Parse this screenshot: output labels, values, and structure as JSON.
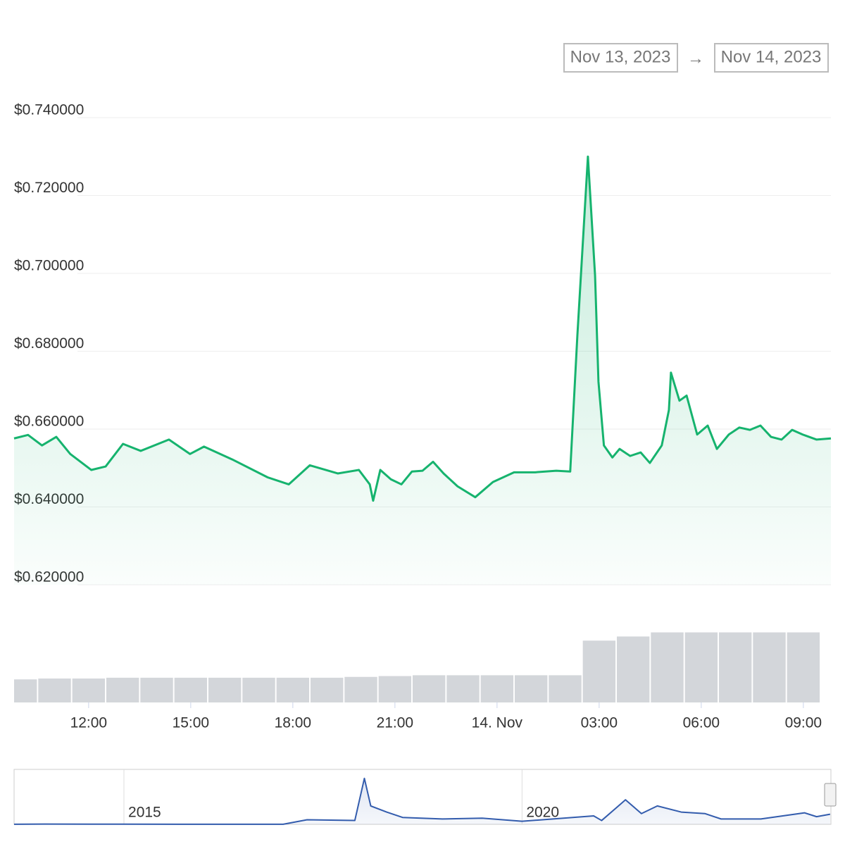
{
  "date_range": {
    "from": "Nov 13, 2023",
    "arrow": "→",
    "to": "Nov 14, 2023"
  },
  "chart_data": [
    {
      "type": "line",
      "area": true,
      "color": "#16b36e",
      "grid": true,
      "x": [
        9.81,
        10.22,
        10.63,
        11.05,
        11.46,
        12.08,
        12.5,
        13.01,
        13.53,
        14.36,
        14.98,
        15.39,
        16.22,
        17.26,
        17.88,
        18.5,
        19.32,
        19.94,
        20.26,
        20.36,
        20.57,
        20.88,
        21.19,
        21.5,
        21.81,
        22.12,
        22.43,
        22.84,
        23.36,
        23.88,
        24.5,
        25.12,
        25.74,
        26.15,
        26.36,
        26.67,
        26.88,
        26.98,
        27.14,
        27.39,
        27.6,
        27.91,
        28.22,
        28.49,
        28.84,
        29.05,
        29.11,
        29.36,
        29.57,
        29.88,
        30.19,
        30.46,
        30.81,
        31.12,
        31.43,
        31.74,
        32.05,
        32.36,
        32.67,
        32.98,
        33.39,
        33.81
      ],
      "values": [
        0.6576,
        0.6585,
        0.6558,
        0.658,
        0.6536,
        0.6495,
        0.6504,
        0.6562,
        0.6544,
        0.6573,
        0.6536,
        0.6555,
        0.6522,
        0.6476,
        0.6458,
        0.6507,
        0.6486,
        0.6495,
        0.6458,
        0.6416,
        0.6495,
        0.6471,
        0.6458,
        0.6491,
        0.6493,
        0.6516,
        0.6486,
        0.6453,
        0.6425,
        0.6464,
        0.6489,
        0.6489,
        0.6493,
        0.6491,
        0.684,
        0.73,
        0.6995,
        0.6722,
        0.6558,
        0.6527,
        0.6549,
        0.6531,
        0.654,
        0.6513,
        0.6558,
        0.6649,
        0.6745,
        0.6673,
        0.6686,
        0.6586,
        0.6609,
        0.6549,
        0.6586,
        0.6604,
        0.6598,
        0.6609,
        0.658,
        0.6573,
        0.6598,
        0.6586,
        0.6573,
        0.6576
      ],
      "xlim": [
        9.81,
        33.81
      ],
      "ylim": [
        0.62,
        0.74
      ],
      "yticks": [
        {
          "value": 0.62,
          "label": "$0.620000"
        },
        {
          "value": 0.64,
          "label": "$0.640000"
        },
        {
          "value": 0.66,
          "label": "$0.660000"
        },
        {
          "value": 0.68,
          "label": "$0.680000"
        },
        {
          "value": 0.7,
          "label": "$0.700000"
        },
        {
          "value": 0.72,
          "label": "$0.720000"
        },
        {
          "value": 0.74,
          "label": "$0.740000"
        }
      ]
    },
    {
      "type": "bar",
      "color": "#d3d6da",
      "x": [
        10,
        11,
        12,
        13,
        14,
        15,
        16,
        17,
        18,
        19,
        20,
        21,
        22,
        23,
        24,
        25,
        26,
        27,
        28,
        29,
        30,
        31,
        32,
        33
      ],
      "values": [
        28,
        29,
        29,
        30,
        30,
        30,
        30,
        30,
        30,
        30,
        31,
        32,
        33,
        33,
        33,
        33,
        33,
        75,
        80,
        85,
        85,
        85,
        85,
        85
      ],
      "xlim": [
        9.81,
        33.81
      ],
      "ylim": [
        0,
        100
      ],
      "xticks": [
        {
          "value": 12,
          "label": "12:00"
        },
        {
          "value": 15,
          "label": "15:00"
        },
        {
          "value": 18,
          "label": "18:00"
        },
        {
          "value": 21,
          "label": "21:00"
        },
        {
          "value": 24,
          "label": "14. Nov"
        },
        {
          "value": 27,
          "label": "03:00"
        },
        {
          "value": 30,
          "label": "06:00"
        },
        {
          "value": 33,
          "label": "09:00"
        }
      ]
    },
    {
      "type": "line",
      "area": true,
      "color": "#335cad",
      "x": [
        2013.62,
        2014.0,
        2015.0,
        2016.0,
        2017.0,
        2017.3,
        2017.9,
        2018.02,
        2018.1,
        2018.3,
        2018.5,
        2019.0,
        2019.5,
        2020.0,
        2020.9,
        2021.0,
        2021.3,
        2021.5,
        2021.7,
        2022.0,
        2022.3,
        2022.5,
        2023.0,
        2023.55,
        2023.7,
        2023.87
      ],
      "values": [
        0.005,
        0.02,
        0.01,
        0.006,
        0.006,
        0.3,
        0.25,
        3.0,
        1.2,
        0.8,
        0.45,
        0.35,
        0.4,
        0.2,
        0.55,
        0.25,
        1.6,
        0.7,
        1.2,
        0.8,
        0.7,
        0.35,
        0.35,
        0.75,
        0.5,
        0.66
      ],
      "xlim": [
        2013.62,
        2023.88
      ],
      "ylim": [
        0,
        3.4
      ],
      "xticks": [
        {
          "value": 2015,
          "label": "2015"
        },
        {
          "value": 2020,
          "label": "2020"
        }
      ]
    }
  ]
}
